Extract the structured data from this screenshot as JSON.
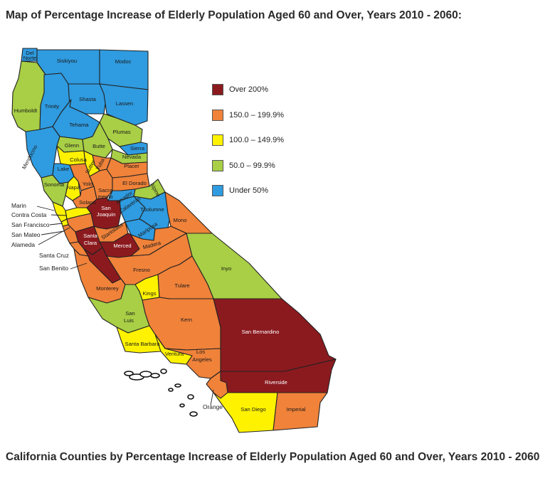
{
  "title": "Map of Percentage Increase of Elderly Population Aged 60 and Over, Years 2010 - 2060:",
  "caption": "California Counties by Percentage Increase of Elderly Population Aged 60 and Over, Years 2010 - 2060",
  "colors": {
    "over200": "#8b1a1f",
    "c150": "#f0823a",
    "c100": "#fff200",
    "c50": "#a8cf45",
    "under50": "#2f9be0",
    "border": "#222222"
  },
  "legend": [
    {
      "label": "Over 200%",
      "class": "over200"
    },
    {
      "label": "150.0 – 199.9%",
      "class": "c150"
    },
    {
      "label": "100.0 – 149.9%",
      "class": "c100"
    },
    {
      "label": "50.0 – 99.9%",
      "class": "c50"
    },
    {
      "label": "Under 50%",
      "class": "under50"
    }
  ],
  "counties": {
    "del_norte": {
      "label": "Del Norte",
      "class": "under50"
    },
    "siskiyou": {
      "label": "Siskiyou",
      "class": "under50"
    },
    "modoc": {
      "label": "Modoc",
      "class": "under50"
    },
    "humboldt": {
      "label": "Humboldt",
      "class": "c50"
    },
    "trinity": {
      "label": "Trinity",
      "class": "under50"
    },
    "shasta": {
      "label": "Shasta",
      "class": "under50"
    },
    "lassen": {
      "label": "Lassen",
      "class": "under50"
    },
    "tehama": {
      "label": "Tehama",
      "class": "under50"
    },
    "plumas": {
      "label": "Plumas",
      "class": "c50"
    },
    "mendocino": {
      "label": "Mendocino",
      "class": "under50"
    },
    "glenn": {
      "label": "Glenn",
      "class": "c50"
    },
    "butte": {
      "label": "Butte",
      "class": "c50"
    },
    "sierra": {
      "label": "Sierra",
      "class": "under50"
    },
    "nevada": {
      "label": "Nevada",
      "class": "c50"
    },
    "colusa": {
      "label": "Colusa",
      "class": "c100"
    },
    "yuba": {
      "label": "Yuba",
      "class": "c150"
    },
    "sutter": {
      "label": "Sutter",
      "class": "c100"
    },
    "placer": {
      "label": "Placer",
      "class": "c150"
    },
    "lake": {
      "label": "Lake",
      "class": "under50"
    },
    "sonoma": {
      "label": "Sonoma",
      "class": "c50"
    },
    "napa": {
      "label": "Napa",
      "class": "c100"
    },
    "yolo": {
      "label": "Yolo",
      "class": "c150"
    },
    "sacramento": {
      "label": "Sacra mento",
      "class": "c150"
    },
    "el_dorado": {
      "label": "El Dorado",
      "class": "c150"
    },
    "amador": {
      "label": "Amador",
      "class": "under50"
    },
    "alpine": {
      "label": "Alpine",
      "class": "c50"
    },
    "solano": {
      "label": "Solano",
      "class": "c150"
    },
    "marin": {
      "label": "Marin",
      "class": "c100"
    },
    "contra_costa": {
      "label": "Contra Costa",
      "class": "c100"
    },
    "san_francisco": {
      "label": "San Francisco",
      "class": "c100"
    },
    "san_mateo": {
      "label": "San Mateo",
      "class": "c150"
    },
    "alameda": {
      "label": "Alameda",
      "class": "c150"
    },
    "san_joaquin": {
      "label": "San Joaquin",
      "class": "over200"
    },
    "calaveras": {
      "label": "Calaveras",
      "class": "under50"
    },
    "tuolumne": {
      "label": "Tuolumne",
      "class": "under50"
    },
    "stanislaus": {
      "label": "Stanislaus",
      "class": "c150"
    },
    "mariposa": {
      "label": "Mariposa",
      "class": "under50"
    },
    "mono": {
      "label": "Mono",
      "class": "c150"
    },
    "santa_clara": {
      "label": "Santa Clara",
      "class": "over200"
    },
    "santa_cruz": {
      "label": "Santa Cruz",
      "class": "c150"
    },
    "san_benito": {
      "label": "San Benito",
      "class": "over200"
    },
    "merced": {
      "label": "Merced",
      "class": "over200"
    },
    "madera": {
      "label": "Madera",
      "class": "c150"
    },
    "fresno": {
      "label": "Fresno",
      "class": "c150"
    },
    "inyo": {
      "label": "Inyo",
      "class": "c50"
    },
    "monterey": {
      "label": "Monterey",
      "class": "c150"
    },
    "kings": {
      "label": "Kings",
      "class": "c100"
    },
    "tulare": {
      "label": "Tulare",
      "class": "c150"
    },
    "san_luis_obispo": {
      "label": "San Luis Obispo",
      "class": "c50"
    },
    "kern": {
      "label": "Kern",
      "class": "c150"
    },
    "san_bernardino": {
      "label": "San Bernardino",
      "class": "over200"
    },
    "santa_barbara": {
      "label": "Santa Barbara",
      "class": "c100"
    },
    "ventura": {
      "label": "Ventura",
      "class": "c100"
    },
    "los_angeles": {
      "label": "Los Angeles",
      "class": "c150"
    },
    "riverside": {
      "label": "Riverside",
      "class": "over200"
    },
    "orange": {
      "label": "Orange",
      "class": "c150"
    },
    "san_diego": {
      "label": "San Diego",
      "class": "c100"
    },
    "imperial": {
      "label": "Imperial",
      "class": "c150"
    }
  }
}
